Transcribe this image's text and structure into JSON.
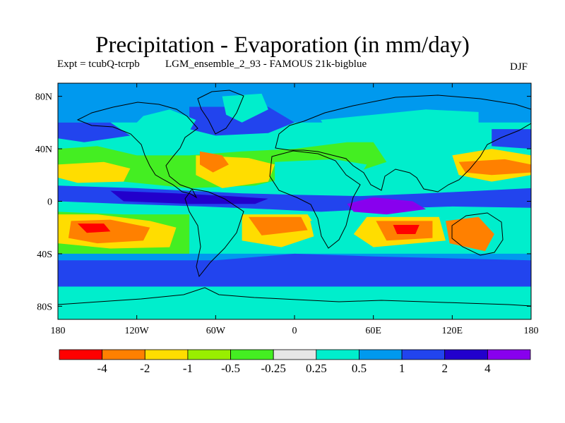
{
  "header": {
    "title": "Precipitation - Evaporation (in mm/day)",
    "expt": "Expt = tcubQ-tcrpb",
    "run": "LGM_ensemble_2_93 - FAMOUS 21k-bigblue",
    "season": "DJF"
  },
  "map": {
    "lat_range": [
      -90,
      90
    ],
    "lon_range": [
      -180,
      180
    ],
    "lat_ticks": [
      {
        "value": 80,
        "label": "80N"
      },
      {
        "value": 40,
        "label": "40N"
      },
      {
        "value": 0,
        "label": "0"
      },
      {
        "value": -40,
        "label": "40S"
      },
      {
        "value": -80,
        "label": "80S"
      }
    ],
    "lon_ticks": [
      {
        "value": -180,
        "label": "180"
      },
      {
        "value": -120,
        "label": "120W"
      },
      {
        "value": -60,
        "label": "60W"
      },
      {
        "value": 0,
        "label": "0"
      },
      {
        "value": 60,
        "label": "60E"
      },
      {
        "value": 120,
        "label": "120E"
      },
      {
        "value": 180,
        "label": "180"
      }
    ],
    "regions": [
      {
        "name": "arctic-cyan",
        "cls": 7,
        "pts": [
          [
            -180,
            90
          ],
          [
            180,
            90
          ],
          [
            180,
            60
          ],
          [
            -180,
            60
          ]
        ]
      },
      {
        "name": "n-atlantic-blue",
        "cls": 8,
        "pts": [
          [
            -80,
            72
          ],
          [
            -20,
            72
          ],
          [
            0,
            60
          ],
          [
            -20,
            52
          ],
          [
            -60,
            50
          ],
          [
            -80,
            55
          ]
        ]
      },
      {
        "name": "greenland-gray",
        "cls": 6,
        "pts": [
          [
            -55,
            80
          ],
          [
            -25,
            82
          ],
          [
            -20,
            70
          ],
          [
            -40,
            60
          ],
          [
            -52,
            66
          ]
        ]
      },
      {
        "name": "eurasia-gray",
        "cls": 6,
        "pts": [
          [
            20,
            62
          ],
          [
            60,
            66
          ],
          [
            100,
            70
          ],
          [
            140,
            68
          ],
          [
            140,
            55
          ],
          [
            100,
            45
          ],
          [
            60,
            40
          ],
          [
            30,
            45
          ]
        ]
      },
      {
        "name": "n-pacific-blue",
        "cls": 8,
        "pts": [
          [
            150,
            55
          ],
          [
            180,
            55
          ],
          [
            180,
            40
          ],
          [
            150,
            42
          ]
        ]
      },
      {
        "name": "n-pacific-blue-west",
        "cls": 8,
        "pts": [
          [
            -180,
            60
          ],
          [
            -140,
            60
          ],
          [
            -125,
            50
          ],
          [
            -160,
            45
          ],
          [
            -180,
            48
          ]
        ]
      },
      {
        "name": "na-gray",
        "cls": 6,
        "pts": [
          [
            -115,
            65
          ],
          [
            -95,
            70
          ],
          [
            -75,
            62
          ],
          [
            -85,
            45
          ],
          [
            -110,
            40
          ],
          [
            -125,
            55
          ]
        ]
      },
      {
        "name": "n-subtrop-green",
        "cls": 4,
        "pts": [
          [
            -180,
            40
          ],
          [
            -150,
            42
          ],
          [
            -120,
            35
          ],
          [
            -80,
            35
          ],
          [
            -40,
            38
          ],
          [
            0,
            40
          ],
          [
            40,
            45
          ],
          [
            60,
            45
          ],
          [
            70,
            30
          ],
          [
            40,
            20
          ],
          [
            10,
            22
          ],
          [
            -30,
            12
          ],
          [
            -80,
            10
          ],
          [
            -130,
            15
          ],
          [
            -180,
            20
          ]
        ]
      },
      {
        "name": "n-atl-yellow",
        "cls": 2,
        "pts": [
          [
            -75,
            35
          ],
          [
            -35,
            33
          ],
          [
            -15,
            28
          ],
          [
            -20,
            15
          ],
          [
            -55,
            10
          ],
          [
            -75,
            20
          ]
        ]
      },
      {
        "name": "n-atl-orange",
        "cls": 1,
        "pts": [
          [
            -72,
            38
          ],
          [
            -55,
            35
          ],
          [
            -50,
            28
          ],
          [
            -62,
            22
          ],
          [
            -72,
            28
          ]
        ]
      },
      {
        "name": "n-pac-yellow",
        "cls": 2,
        "pts": [
          [
            -180,
            28
          ],
          [
            -145,
            30
          ],
          [
            -125,
            25
          ],
          [
            -130,
            15
          ],
          [
            -165,
            14
          ],
          [
            -180,
            18
          ]
        ]
      },
      {
        "name": "w-pac-yellow",
        "cls": 2,
        "pts": [
          [
            120,
            35
          ],
          [
            150,
            40
          ],
          [
            180,
            35
          ],
          [
            180,
            20
          ],
          [
            150,
            15
          ],
          [
            125,
            20
          ]
        ]
      },
      {
        "name": "w-pac-orange",
        "cls": 1,
        "pts": [
          [
            125,
            30
          ],
          [
            160,
            32
          ],
          [
            180,
            28
          ],
          [
            180,
            22
          ],
          [
            150,
            20
          ],
          [
            130,
            22
          ]
        ]
      },
      {
        "name": "sahara-gray",
        "cls": 6,
        "pts": [
          [
            -15,
            30
          ],
          [
            30,
            32
          ],
          [
            55,
            28
          ],
          [
            45,
            12
          ],
          [
            10,
            10
          ],
          [
            -15,
            15
          ]
        ]
      },
      {
        "name": "itcz-blue",
        "cls": 8,
        "pts": [
          [
            -180,
            12
          ],
          [
            -120,
            10
          ],
          [
            -80,
            8
          ],
          [
            -40,
            6
          ],
          [
            0,
            5
          ],
          [
            50,
            4
          ],
          [
            100,
            6
          ],
          [
            140,
            8
          ],
          [
            180,
            10
          ],
          [
            180,
            -5
          ],
          [
            120,
            -4
          ],
          [
            60,
            -6
          ],
          [
            20,
            -8
          ],
          [
            -20,
            -6
          ],
          [
            -70,
            -4
          ],
          [
            -130,
            -2
          ],
          [
            -180,
            0
          ]
        ]
      },
      {
        "name": "itcz-dark",
        "cls": 9,
        "pts": [
          [
            -140,
            8
          ],
          [
            -90,
            6
          ],
          [
            -50,
            4
          ],
          [
            -20,
            2
          ],
          [
            -30,
            -2
          ],
          [
            -80,
            -2
          ],
          [
            -130,
            0
          ]
        ]
      },
      {
        "name": "indian-violet",
        "cls": 10,
        "pts": [
          [
            40,
            -2
          ],
          [
            60,
            3
          ],
          [
            90,
            0
          ],
          [
            100,
            -6
          ],
          [
            70,
            -10
          ],
          [
            45,
            -8
          ]
        ]
      },
      {
        "name": "s-pac-green",
        "cls": 4,
        "pts": [
          [
            -180,
            -8
          ],
          [
            -130,
            -10
          ],
          [
            -80,
            -10
          ],
          [
            -80,
            -40
          ],
          [
            -130,
            -42
          ],
          [
            -180,
            -40
          ]
        ]
      },
      {
        "name": "s-pac-yellow",
        "cls": 2,
        "pts": [
          [
            -180,
            -10
          ],
          [
            -150,
            -10
          ],
          [
            -110,
            -15
          ],
          [
            -90,
            -20
          ],
          [
            -95,
            -35
          ],
          [
            -140,
            -36
          ],
          [
            -180,
            -32
          ]
        ]
      },
      {
        "name": "s-pac-orange",
        "cls": 1,
        "pts": [
          [
            -170,
            -15
          ],
          [
            -140,
            -14
          ],
          [
            -110,
            -20
          ],
          [
            -115,
            -30
          ],
          [
            -150,
            -32
          ],
          [
            -172,
            -28
          ]
        ]
      },
      {
        "name": "s-pac-red",
        "cls": 0,
        "pts": [
          [
            -165,
            -17
          ],
          [
            -145,
            -17
          ],
          [
            -140,
            -23
          ],
          [
            -158,
            -24
          ]
        ]
      },
      {
        "name": "s-atl-yellow",
        "cls": 2,
        "pts": [
          [
            -40,
            -10
          ],
          [
            10,
            -10
          ],
          [
            20,
            -25
          ],
          [
            -10,
            -35
          ],
          [
            -40,
            -30
          ]
        ]
      },
      {
        "name": "s-atl-orange",
        "cls": 1,
        "pts": [
          [
            -35,
            -12
          ],
          [
            5,
            -12
          ],
          [
            10,
            -22
          ],
          [
            -25,
            -26
          ]
        ]
      },
      {
        "name": "s-ind-yellow",
        "cls": 2,
        "pts": [
          [
            55,
            -12
          ],
          [
            110,
            -12
          ],
          [
            115,
            -30
          ],
          [
            60,
            -35
          ],
          [
            45,
            -25
          ]
        ]
      },
      {
        "name": "s-ind-orange",
        "cls": 1,
        "pts": [
          [
            62,
            -15
          ],
          [
            105,
            -15
          ],
          [
            105,
            -28
          ],
          [
            70,
            -30
          ]
        ]
      },
      {
        "name": "s-ind-red",
        "cls": 0,
        "pts": [
          [
            75,
            -18
          ],
          [
            95,
            -18
          ],
          [
            92,
            -25
          ],
          [
            78,
            -25
          ]
        ]
      },
      {
        "name": "australia-orange",
        "cls": 1,
        "pts": [
          [
            115,
            -15
          ],
          [
            140,
            -12
          ],
          [
            152,
            -25
          ],
          [
            145,
            -38
          ],
          [
            118,
            -32
          ]
        ]
      },
      {
        "name": "africa-s-gray",
        "cls": 6,
        "pts": [
          [
            12,
            -15
          ],
          [
            35,
            -12
          ],
          [
            40,
            -30
          ],
          [
            25,
            -35
          ],
          [
            15,
            -28
          ]
        ]
      },
      {
        "name": "s-mid-cyan",
        "cls": 7,
        "pts": [
          [
            -180,
            -40
          ],
          [
            180,
            -40
          ],
          [
            180,
            -55
          ],
          [
            -180,
            -55
          ]
        ]
      },
      {
        "name": "s-storm-blue",
        "cls": 8,
        "pts": [
          [
            -180,
            -45
          ],
          [
            -60,
            -45
          ],
          [
            0,
            -40
          ],
          [
            60,
            -42
          ],
          [
            180,
            -45
          ],
          [
            180,
            -65
          ],
          [
            -180,
            -65
          ]
        ]
      },
      {
        "name": "antarctic-gray",
        "cls": 6,
        "pts": [
          [
            -180,
            -68
          ],
          [
            -120,
            -72
          ],
          [
            -60,
            -70
          ],
          [
            0,
            -70
          ],
          [
            60,
            -68
          ],
          [
            120,
            -68
          ],
          [
            180,
            -70
          ],
          [
            180,
            -90
          ],
          [
            -180,
            -90
          ]
        ]
      }
    ]
  },
  "colorbar": {
    "colors": [
      "#ff0000",
      "#ff8000",
      "#ffdd00",
      "#99ee00",
      "#44ee22",
      "#e6e6e6",
      "#00eecc",
      "#0099ee",
      "#2244ee",
      "#2200cc",
      "#8800ee"
    ],
    "labels": [
      "-4",
      "-2",
      "-1",
      "-0.5",
      "-0.25",
      "0.25",
      "0.5",
      "1",
      "2",
      "4"
    ]
  }
}
